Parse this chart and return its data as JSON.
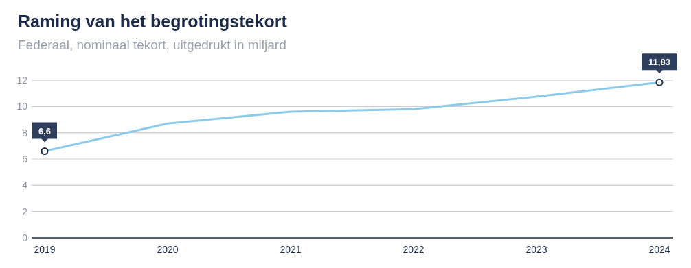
{
  "chart_data": {
    "type": "line",
    "title": "Raming van het begrotingstekort",
    "subtitle": "Federaal, nominaal tekort, uitgedrukt in miljard",
    "categories": [
      "2019",
      "2020",
      "2021",
      "2022",
      "2023",
      "2024"
    ],
    "series": [
      {
        "color": "#8ecbea",
        "values": [
          6.6,
          8.7,
          9.6,
          9.8,
          10.75,
          11.83
        ],
        "value_labels": [
          "6,6",
          null,
          null,
          null,
          null,
          "11,83"
        ]
      }
    ],
    "ylim": [
      0,
      12
    ],
    "yticks": [
      0,
      2,
      4,
      6,
      8,
      10,
      12
    ],
    "grid": "y"
  }
}
